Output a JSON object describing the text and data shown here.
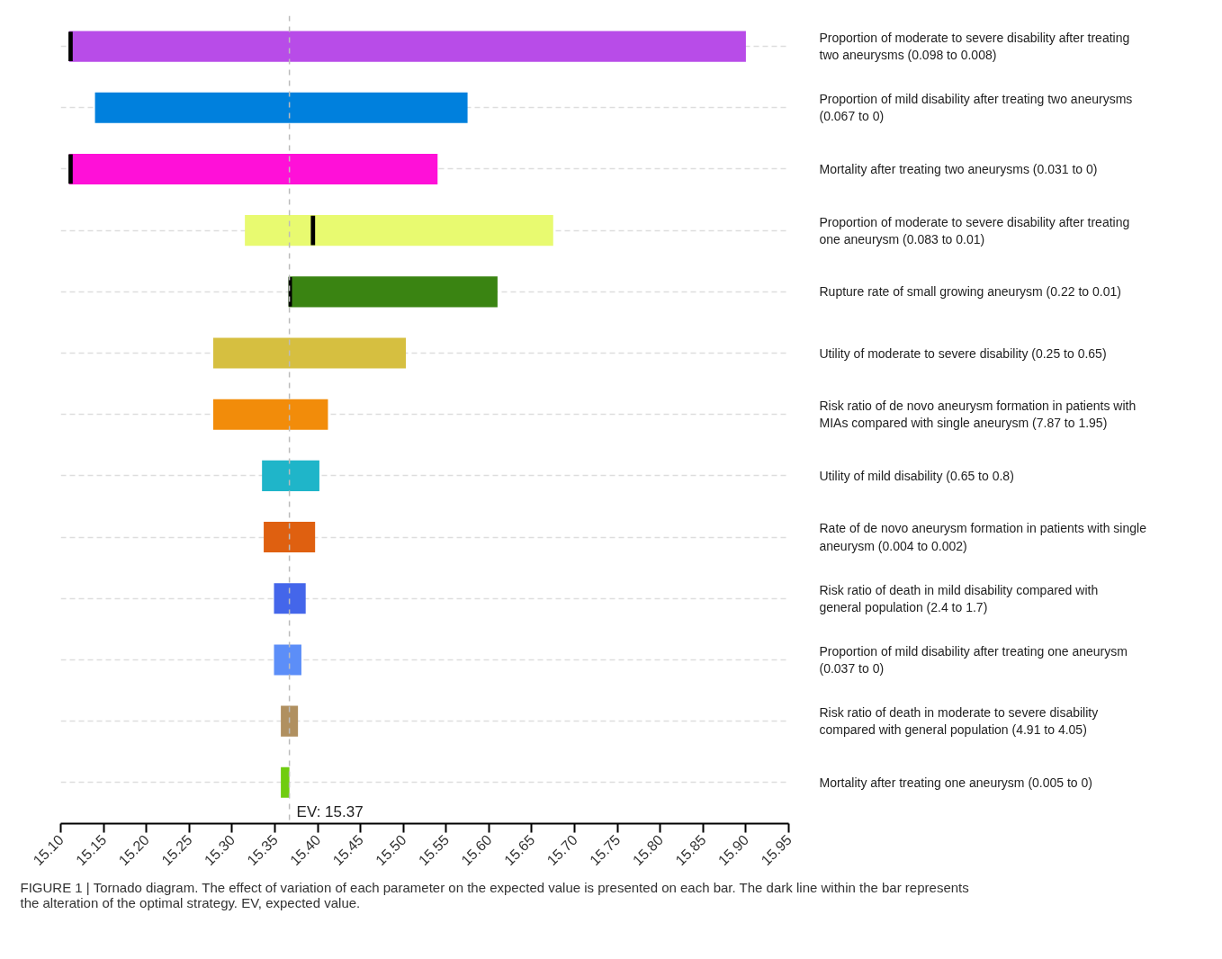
{
  "chart_data": {
    "type": "bar",
    "orientation": "horizontal",
    "categories": [
      "Proportion of moderate to severe disability after treating two aneurysms (0.098 to 0.008)",
      "Proportion of mild disability after treating two aneurysms (0.067 to 0)",
      "Mortality after treating two aneurysms (0.031 to 0)",
      "Proportion of moderate to severe disability after treating one aneurysm (0.083 to 0.01)",
      "Rupture rate of small growing aneurysm (0.22 to 0.01)",
      "Utility of moderate to severe disability (0.25 to 0.65)",
      "Risk ratio of de novo aneurysm formation in patients with MIAs compared with single aneurysm (7.87 to 1.95)",
      "Utility of mild disability (0.65 to 0.8)",
      "Rate of de novo aneurysm formation in patients with single aneurysm (0.004 to 0.002)",
      "Risk ratio of death in mild disability compared with general population (2.4 to 1.7)",
      "Proportion of mild disability after treating one aneurysm (0.037 to 0)",
      "Risk ratio of death in moderate to severe disability compared with general population (4.91 to 4.05)",
      "Mortality after treating one aneurysm (0.005 to 0)"
    ],
    "series": [
      {
        "base": [
          15.11,
          15.14,
          15.11,
          15.315,
          15.366,
          15.278,
          15.278,
          15.335,
          15.337,
          15.349,
          15.349,
          15.357,
          15.357
        ],
        "values": [
          0.79,
          0.435,
          0.43,
          0.36,
          0.244,
          0.225,
          0.134,
          0.067,
          0.06,
          0.037,
          0.032,
          0.02,
          0.01
        ],
        "colors": [
          "#b84ce8",
          "#0080dd",
          "#ff10d8",
          "#e8fa70",
          "#3a8412",
          "#d6bf40",
          "#f28c0a",
          "#1fb5c9",
          "#df6010",
          "#4466ea",
          "#5c8ef8",
          "#b09060",
          "#70cc10"
        ]
      },
      {
        "type": "bar",
        "color": "#000000",
        "base": [
          15.109,
          null,
          15.109,
          15.392,
          15.366,
          null,
          null,
          null,
          null,
          null,
          null,
          null,
          null
        ],
        "values": [
          0.005,
          null,
          0.005,
          0.005,
          0.004,
          null,
          null,
          null,
          null,
          null,
          null,
          null,
          null
        ]
      }
    ],
    "xlim": [
      15.1,
      15.95
    ],
    "xticks": [
      {
        "value": 15.1,
        "label": "15.10"
      },
      15.15,
      {
        "value": 15.2,
        "label": "15.20"
      },
      15.25,
      {
        "value": 15.3,
        "label": "15.30"
      },
      15.35,
      {
        "value": 15.4,
        "label": "15.40"
      },
      15.45,
      {
        "value": 15.5,
        "label": "15.50"
      },
      15.55,
      {
        "value": 15.6,
        "label": "15.60"
      },
      15.65,
      {
        "value": 15.7,
        "label": "15.70"
      },
      15.75,
      {
        "value": 15.8,
        "label": "15.80"
      },
      15.85,
      {
        "value": 15.9,
        "label": "15.90"
      },
      15.95
    ],
    "ref_lines": [
      {
        "axis": "x",
        "value": 15.367,
        "label": "EV: 15.37",
        "color": "#bbbbbb",
        "line_style": "dashed"
      }
    ],
    "grid": "y",
    "annotations": [
      "FIGURE 1 | Tornado diagram. The effect of variation of each parameter on the expected value is presented on each bar. The dark line within the bar represents the alteration of the optimal strategy. EV, expected value."
    ]
  }
}
